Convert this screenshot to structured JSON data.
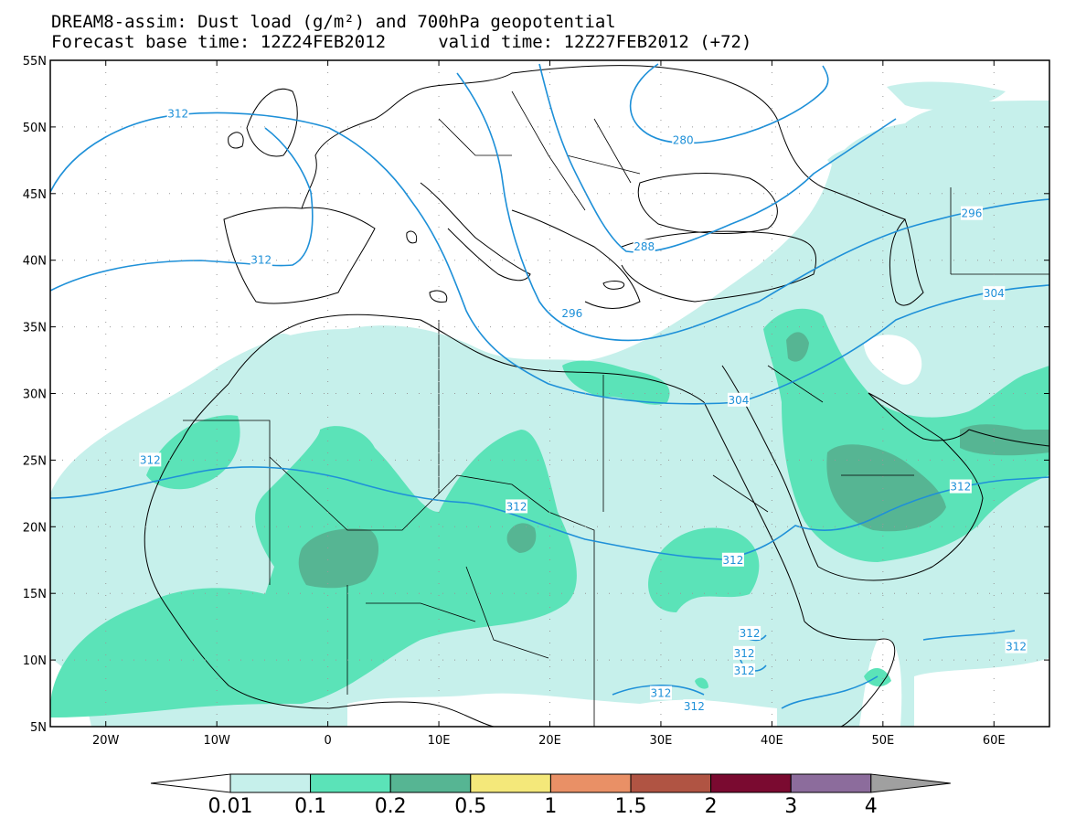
{
  "header": {
    "title_line1": "DREAM8-assim: Dust load (g/m²) and 700hPa geopotential",
    "title_line2": "Forecast base time: 12Z24FEB2012     valid time: 12Z27FEB2012 (+72)"
  },
  "axes": {
    "lat_labels": [
      "55N",
      "50N",
      "45N",
      "40N",
      "35N",
      "30N",
      "25N",
      "20N",
      "15N",
      "10N",
      "5N"
    ],
    "lon_labels": [
      "20W",
      "10W",
      "0",
      "10E",
      "20E",
      "30E",
      "40E",
      "50E",
      "60E"
    ],
    "lat_range": [
      5,
      55
    ],
    "lon_range": [
      -25,
      65
    ]
  },
  "contour_labels": [
    {
      "text": "312",
      "lon": -13.5,
      "lat": 51
    },
    {
      "text": "312",
      "lon": -6,
      "lat": 40
    },
    {
      "text": "280",
      "lon": 32,
      "lat": 49
    },
    {
      "text": "288",
      "lon": 28.5,
      "lat": 41
    },
    {
      "text": "296",
      "lon": 58,
      "lat": 43.5
    },
    {
      "text": "296",
      "lon": 22,
      "lat": 36
    },
    {
      "text": "304",
      "lon": 60,
      "lat": 37.5
    },
    {
      "text": "304",
      "lon": 37,
      "lat": 29.5
    },
    {
      "text": "312",
      "lon": -16,
      "lat": 25
    },
    {
      "text": "312",
      "lon": 17,
      "lat": 21.5
    },
    {
      "text": "312",
      "lon": 57,
      "lat": 23
    },
    {
      "text": "312",
      "lon": 36.5,
      "lat": 17.5
    },
    {
      "text": "312",
      "lon": 62,
      "lat": 11
    },
    {
      "text": "312",
      "lon": 30,
      "lat": 7.5
    },
    {
      "text": "312",
      "lon": 33,
      "lat": 6.5
    },
    {
      "text": "312",
      "lon": 38,
      "lat": 12
    },
    {
      "text": "312",
      "lon": 37.5,
      "lat": 10.5
    },
    {
      "text": "312",
      "lon": 37.5,
      "lat": 9.2
    }
  ],
  "colorbar": {
    "labels": [
      "0.01",
      "0.1",
      "0.2",
      "0.5",
      "1",
      "1.5",
      "2",
      "3",
      "4"
    ],
    "colors": [
      "#ffffff",
      "#c6f0eb",
      "#5be3b8",
      "#56b593",
      "#f4e87a",
      "#e99066",
      "#b05443",
      "#7a0a30",
      "#8c6c9c",
      "#a0a0a0"
    ]
  },
  "colors": {
    "dust_low": "#c6f0eb",
    "dust_mid": "#5be3b8",
    "dust_high": "#56b593",
    "contour": "#1e90d8",
    "coast": "#000000"
  }
}
